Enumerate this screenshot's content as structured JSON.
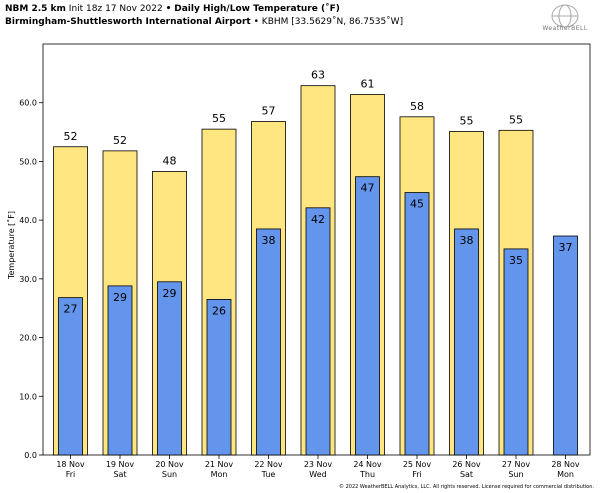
{
  "header": {
    "model": "NBM 2.5 km",
    "init": "Init 18z 17 Nov 2022",
    "sep": "•",
    "title": "Daily High/Low Temperature (˚F)",
    "station": "Birmingham-Shuttlesworth International Airport",
    "station_code": "KBHM",
    "coords": "[33.5629˚N, 86.7535˚W]"
  },
  "logo": {
    "text": "WeatherBELL"
  },
  "footer": {
    "copyright": "© 2022 WeatherBELL Analytics, LLC. All rights reserved. License required for commercial distribution."
  },
  "colors": {
    "high": "#FFE680",
    "low": "#6495ED",
    "border": "#000000"
  },
  "chart_data": {
    "type": "bar",
    "ylabel": "Temperature [˚F]",
    "ylim": [
      0,
      70
    ],
    "yticks": [
      "0.0",
      "10.0",
      "20.0",
      "30.0",
      "40.0",
      "50.0",
      "60.0"
    ],
    "categories": [
      [
        "18 Nov",
        "Fri"
      ],
      [
        "19 Nov",
        "Sat"
      ],
      [
        "20 Nov",
        "Sun"
      ],
      [
        "21 Nov",
        "Mon"
      ],
      [
        "22 Nov",
        "Tue"
      ],
      [
        "23 Nov",
        "Wed"
      ],
      [
        "24 Nov",
        "Thu"
      ],
      [
        "25 Nov",
        "Fri"
      ],
      [
        "26 Nov",
        "Sat"
      ],
      [
        "27 Nov",
        "Sun"
      ],
      [
        "28 Nov",
        "Mon"
      ]
    ],
    "series": [
      {
        "key": "high",
        "values": [
          52.5,
          51.8,
          48.3,
          55.5,
          56.8,
          62.9,
          61.4,
          57.6,
          55.1,
          55.3,
          null
        ],
        "labels": [
          "52",
          "52",
          "48",
          "55",
          "57",
          "63",
          "61",
          "58",
          "55",
          "55",
          null
        ]
      },
      {
        "key": "low",
        "values": [
          26.8,
          28.8,
          29.5,
          26.5,
          38.5,
          42.1,
          47.4,
          44.7,
          38.5,
          35.1,
          37.3
        ],
        "labels": [
          "27",
          "29",
          "29",
          "26",
          "38",
          "42",
          "47",
          "45",
          "38",
          "35",
          "37"
        ]
      }
    ]
  }
}
